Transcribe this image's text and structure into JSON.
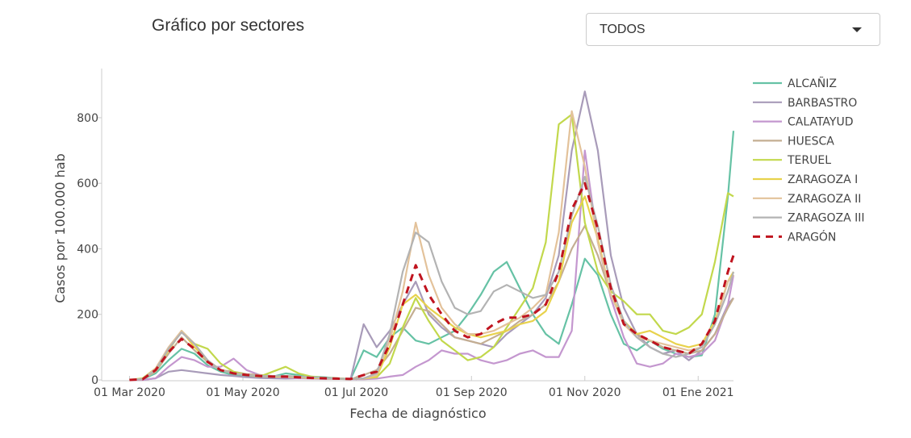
{
  "header": {
    "title": "Gráfico por sectores",
    "select": {
      "value": "TODOS",
      "icon": "caret-down-icon"
    }
  },
  "chart_data": {
    "type": "line",
    "title": "",
    "xlabel": "Fecha de diagnóstico",
    "ylabel": "Casos por 100.000 hab",
    "xlim": [
      "2020-02-15",
      "2021-01-20"
    ],
    "ylim": [
      0,
      950
    ],
    "x_ticks": [
      {
        "date": "2020-03-01",
        "label": "01 Mar 2020"
      },
      {
        "date": "2020-05-01",
        "label": "01 May 2020"
      },
      {
        "date": "2020-07-01",
        "label": "01 Jul 2020"
      },
      {
        "date": "2020-09-01",
        "label": "01 Sep 2020"
      },
      {
        "date": "2020-11-01",
        "label": "01 Nov 2020"
      },
      {
        "date": "2021-01-01",
        "label": "01 Ene 2021"
      }
    ],
    "y_ticks": [
      0,
      200,
      400,
      600,
      800
    ],
    "grid": false,
    "legend_position": "right",
    "x": [
      "2020-03-01",
      "2020-03-08",
      "2020-03-15",
      "2020-03-22",
      "2020-03-29",
      "2020-04-05",
      "2020-04-12",
      "2020-04-19",
      "2020-04-26",
      "2020-05-03",
      "2020-05-10",
      "2020-05-17",
      "2020-05-24",
      "2020-05-31",
      "2020-06-07",
      "2020-06-14",
      "2020-06-21",
      "2020-06-28",
      "2020-07-05",
      "2020-07-12",
      "2020-07-19",
      "2020-07-26",
      "2020-08-02",
      "2020-08-09",
      "2020-08-16",
      "2020-08-23",
      "2020-08-30",
      "2020-09-06",
      "2020-09-13",
      "2020-09-20",
      "2020-09-27",
      "2020-10-04",
      "2020-10-11",
      "2020-10-18",
      "2020-10-25",
      "2020-11-01",
      "2020-11-08",
      "2020-11-15",
      "2020-11-22",
      "2020-11-29",
      "2020-12-06",
      "2020-12-13",
      "2020-12-20",
      "2020-12-27",
      "2021-01-03",
      "2021-01-10",
      "2021-01-17",
      "2021-01-20"
    ],
    "series": [
      {
        "name": "ALCAÑIZ",
        "color": "#66c2a5",
        "dash": false,
        "values": [
          0,
          2,
          20,
          60,
          95,
          80,
          45,
          25,
          15,
          10,
          8,
          10,
          20,
          15,
          10,
          8,
          5,
          3,
          90,
          70,
          130,
          160,
          120,
          110,
          130,
          150,
          200,
          260,
          330,
          360,
          280,
          200,
          140,
          110,
          230,
          370,
          320,
          200,
          110,
          90,
          120,
          95,
          80,
          70,
          75,
          200,
          560,
          760
        ]
      },
      {
        "name": "BARBASTRO",
        "color": "#a89bb9",
        "dash": false,
        "values": [
          0,
          0,
          5,
          25,
          30,
          25,
          20,
          15,
          12,
          8,
          6,
          5,
          4,
          5,
          6,
          5,
          4,
          3,
          170,
          100,
          150,
          230,
          300,
          200,
          160,
          130,
          120,
          110,
          100,
          140,
          170,
          200,
          250,
          380,
          700,
          880,
          700,
          380,
          220,
          140,
          100,
          80,
          90,
          60,
          90,
          140,
          230,
          250
        ]
      },
      {
        "name": "CALATAYUD",
        "color": "#c497cf",
        "dash": false,
        "values": [
          0,
          0,
          5,
          40,
          70,
          60,
          40,
          40,
          65,
          30,
          15,
          10,
          8,
          5,
          4,
          3,
          3,
          2,
          2,
          4,
          10,
          15,
          40,
          60,
          90,
          80,
          80,
          60,
          50,
          60,
          80,
          90,
          70,
          70,
          150,
          700,
          420,
          250,
          130,
          50,
          40,
          50,
          80,
          70,
          80,
          120,
          230,
          320
        ]
      },
      {
        "name": "HUESCA",
        "color": "#c4ae92",
        "dash": false,
        "values": [
          0,
          2,
          25,
          80,
          130,
          90,
          55,
          30,
          25,
          18,
          15,
          12,
          10,
          8,
          6,
          5,
          3,
          2,
          15,
          30,
          80,
          150,
          220,
          210,
          170,
          130,
          120,
          110,
          130,
          150,
          180,
          200,
          230,
          300,
          400,
          470,
          380,
          260,
          180,
          140,
          120,
          100,
          90,
          80,
          90,
          140,
          220,
          250
        ]
      },
      {
        "name": "TERUEL",
        "color": "#c2d84c",
        "dash": false,
        "values": [
          0,
          5,
          35,
          90,
          150,
          110,
          95,
          50,
          25,
          15,
          10,
          25,
          40,
          20,
          10,
          6,
          5,
          3,
          5,
          8,
          50,
          160,
          250,
          180,
          120,
          90,
          60,
          70,
          100,
          160,
          220,
          280,
          420,
          780,
          810,
          480,
          330,
          270,
          240,
          200,
          200,
          150,
          140,
          160,
          200,
          360,
          570,
          560
        ]
      },
      {
        "name": "ZARAGOZA I",
        "color": "#e8d24c",
        "dash": false,
        "values": [
          0,
          3,
          30,
          90,
          150,
          100,
          60,
          30,
          20,
          15,
          12,
          10,
          10,
          8,
          6,
          5,
          4,
          3,
          4,
          10,
          100,
          230,
          260,
          220,
          190,
          160,
          140,
          130,
          140,
          150,
          170,
          180,
          210,
          300,
          480,
          560,
          430,
          260,
          180,
          140,
          150,
          130,
          110,
          100,
          110,
          180,
          300,
          330
        ]
      },
      {
        "name": "ZARAGOZA II",
        "color": "#e3c29a",
        "dash": false,
        "values": [
          0,
          3,
          35,
          100,
          150,
          110,
          60,
          30,
          20,
          15,
          12,
          12,
          12,
          10,
          8,
          6,
          4,
          3,
          5,
          15,
          120,
          270,
          480,
          320,
          220,
          170,
          140,
          140,
          150,
          170,
          190,
          220,
          260,
          450,
          820,
          650,
          420,
          260,
          170,
          130,
          120,
          110,
          100,
          90,
          100,
          170,
          300,
          320
        ]
      },
      {
        "name": "ZARAGOZA III",
        "color": "#b3b3b3",
        "dash": false,
        "values": [
          0,
          3,
          30,
          95,
          145,
          110,
          60,
          30,
          20,
          15,
          12,
          12,
          12,
          10,
          8,
          6,
          4,
          3,
          5,
          20,
          140,
          330,
          450,
          420,
          300,
          220,
          200,
          210,
          270,
          290,
          270,
          250,
          260,
          330,
          500,
          620,
          470,
          290,
          180,
          130,
          100,
          80,
          70,
          80,
          100,
          170,
          270,
          330
        ]
      },
      {
        "name": "ARAGÓN",
        "color": "#c0141f",
        "dash": true,
        "values": [
          0,
          2,
          30,
          85,
          125,
          95,
          55,
          30,
          20,
          15,
          12,
          10,
          10,
          8,
          6,
          5,
          4,
          3,
          15,
          25,
          110,
          230,
          350,
          260,
          200,
          150,
          130,
          140,
          170,
          190,
          190,
          200,
          230,
          330,
          520,
          600,
          460,
          280,
          170,
          140,
          120,
          100,
          90,
          80,
          110,
          180,
          330,
          380
        ]
      }
    ]
  }
}
